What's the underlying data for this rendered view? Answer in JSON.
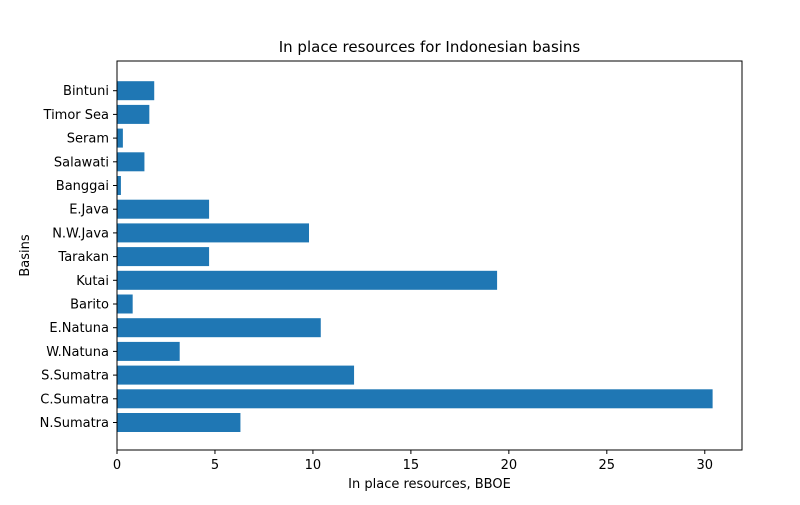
{
  "chart_data": {
    "type": "bar",
    "orientation": "horizontal",
    "title": "In place resources for Indonesian basins",
    "xlabel": "In place resources, BBOE",
    "ylabel": "Basins",
    "xlim": [
      0,
      31.9
    ],
    "xticks": [
      0,
      5,
      10,
      15,
      20,
      25,
      30
    ],
    "grid": false,
    "bar_color": "#1f77b4",
    "categories": [
      "N.Sumatra",
      "C.Sumatra",
      "S.Sumatra",
      "W.Natuna",
      "E.Natuna",
      "Barito",
      "Kutai",
      "Tarakan",
      "N.W.Java",
      "E.Java",
      "Banggai",
      "Salawati",
      "Seram",
      "Timor Sea",
      "Bintuni"
    ],
    "values": [
      6.3,
      30.4,
      12.1,
      3.2,
      10.4,
      0.8,
      19.4,
      4.7,
      9.8,
      4.7,
      0.2,
      1.4,
      0.3,
      1.65,
      1.9
    ]
  }
}
